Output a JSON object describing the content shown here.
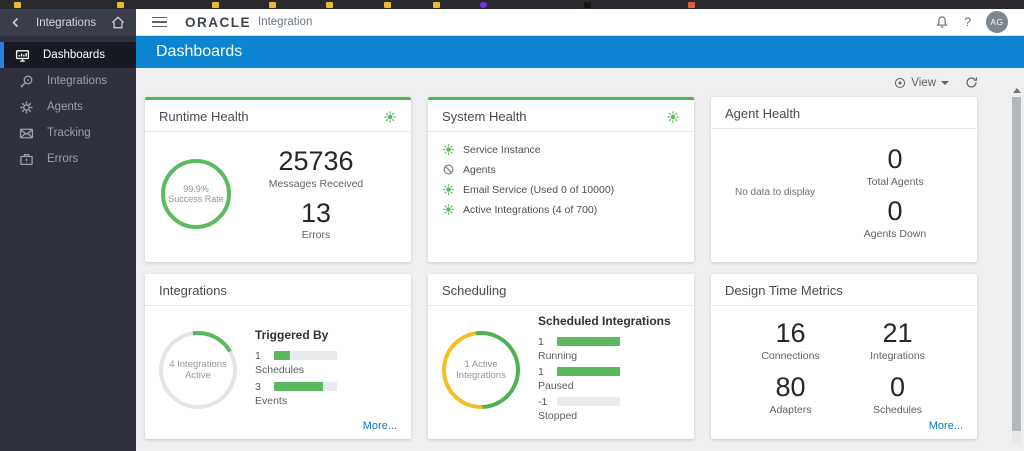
{
  "colors": {
    "banner_blue": "#0d84d1",
    "status_green": "#5abc5e",
    "warning_yellow": "#f2c024",
    "link_blue": "#0b79c4",
    "selected_item_blue": "#2b7de0",
    "sidebar_bg": "#2f323e"
  },
  "sidebar": {
    "header_title": "Integrations",
    "items": [
      {
        "label": "Dashboards",
        "selected": true
      },
      {
        "label": "Integrations",
        "selected": false
      },
      {
        "label": "Agents",
        "selected": false
      },
      {
        "label": "Tracking",
        "selected": false
      },
      {
        "label": "Errors",
        "selected": false
      }
    ]
  },
  "topbar": {
    "logo": "ORACLE",
    "product": "Integration",
    "help_label": "?",
    "avatar_initials": "AG"
  },
  "banner": {
    "title": "Dashboards"
  },
  "toolbar": {
    "view_label": "View"
  },
  "cards": {
    "runtime_health": {
      "title": "Runtime Health",
      "gauge_value": "99.9%",
      "gauge_label": "Success Rate",
      "metrics": [
        {
          "value": "25736",
          "label": "Messages Received"
        },
        {
          "value": "13",
          "label": "Errors"
        }
      ]
    },
    "system_health": {
      "title": "System Health",
      "items": [
        {
          "label": "Service Instance",
          "status": "ok"
        },
        {
          "label": "Agents",
          "status": "disabled"
        },
        {
          "label": "Email Service (Used 0 of 10000)",
          "status": "ok"
        },
        {
          "label": "Active Integrations (4 of 700)",
          "status": "ok"
        }
      ]
    },
    "agent_health": {
      "title": "Agent Health",
      "empty_text": "No data to display",
      "metrics": [
        {
          "value": "0",
          "label": "Total Agents"
        },
        {
          "value": "0",
          "label": "Agents Down"
        }
      ]
    },
    "integrations": {
      "title": "Integrations",
      "donut_line1": "4 Integrations",
      "donut_line2": "Active",
      "section_title": "Triggered By",
      "rows": [
        {
          "value": "1",
          "label": "Schedules",
          "pct": 26
        },
        {
          "value": "3",
          "label": "Events",
          "pct": 77
        }
      ],
      "more_label": "More..."
    },
    "scheduling": {
      "title": "Scheduling",
      "donut_line1": "1 Active",
      "donut_line2": "Integrations",
      "section_title": "Scheduled Integrations",
      "rows": [
        {
          "value": "1",
          "label": "Running",
          "pct": 100
        },
        {
          "value": "1",
          "label": "Paused",
          "pct": 100
        },
        {
          "value": "-1",
          "label": "Stopped",
          "pct": 0
        }
      ]
    },
    "design_time": {
      "title": "Design Time Metrics",
      "metrics": [
        {
          "value": "16",
          "label": "Connections"
        },
        {
          "value": "21",
          "label": "Integrations"
        },
        {
          "value": "80",
          "label": "Adapters"
        },
        {
          "value": "0",
          "label": "Schedules"
        }
      ],
      "more_label": "More..."
    }
  }
}
